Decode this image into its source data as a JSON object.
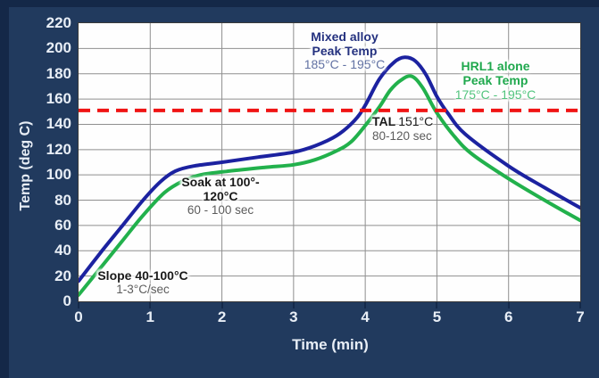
{
  "colors": {
    "background": "#213a5e",
    "edge_strip": "#142848",
    "plot_background": "#fefefe",
    "gridline": "#8f8f8f",
    "axis_text": "#e8eef6",
    "mixed_alloy_line": "#1c22a0",
    "hrl1_line": "#22b14c",
    "tal_line": "#f01414",
    "annotation_navy": "#24317f",
    "annotation_navy_sub": "#6272a3",
    "annotation_black": "#1a1a1a",
    "annotation_gray": "#5c5c5c",
    "annotation_green": "#1fa84d",
    "annotation_green_sub": "#52c47e"
  },
  "annotations": {
    "mixed_alloy": {
      "line1": "Mixed alloy",
      "line2": "Peak Temp",
      "range": "185°C - 195°C"
    },
    "hrl1": {
      "line1": "HRL1 alone",
      "line2": "Peak Temp",
      "range": "175°C - 195°C"
    },
    "tal": {
      "bold": "TAL",
      "value": "151°C",
      "sub": "80-120 sec"
    },
    "soak": {
      "line1": "Soak at 100°-",
      "line2": "120°C",
      "sub": "60 - 100 sec"
    },
    "slope": {
      "line1": "Slope 40-100°C",
      "sub": "1-3°C/sec"
    }
  },
  "chart_data": {
    "type": "line",
    "xlabel": "Time (min)",
    "ylabel": "Temp (deg C)",
    "xlim": [
      0,
      7
    ],
    "ylim": [
      0,
      220
    ],
    "xticks": [
      0,
      1,
      2,
      3,
      4,
      5,
      6,
      7
    ],
    "yticks": [
      0,
      20,
      40,
      60,
      80,
      100,
      120,
      140,
      160,
      180,
      200,
      220
    ],
    "grid": true,
    "legend": "none",
    "series": [
      {
        "name": "Mixed alloy",
        "color": "#1c22a0",
        "peak_temp_range": "185-195 C",
        "points": [
          [
            0,
            16
          ],
          [
            0.3,
            38
          ],
          [
            0.6,
            59
          ],
          [
            0.9,
            80
          ],
          [
            1.15,
            95
          ],
          [
            1.35,
            103
          ],
          [
            1.6,
            107
          ],
          [
            2.0,
            110
          ],
          [
            2.5,
            114
          ],
          [
            3.0,
            118
          ],
          [
            3.3,
            123
          ],
          [
            3.6,
            131
          ],
          [
            3.85,
            143
          ],
          [
            4.0,
            155
          ],
          [
            4.2,
            176
          ],
          [
            4.4,
            189
          ],
          [
            4.55,
            193
          ],
          [
            4.7,
            190
          ],
          [
            4.85,
            179
          ],
          [
            5.0,
            162
          ],
          [
            5.15,
            149
          ],
          [
            5.4,
            132
          ],
          [
            6.0,
            107
          ],
          [
            6.5,
            90
          ],
          [
            7.0,
            74
          ]
        ]
      },
      {
        "name": "HRL1 alone",
        "color": "#22b14c",
        "peak_temp_range": "175-195 C",
        "points": [
          [
            0,
            5
          ],
          [
            0.3,
            26
          ],
          [
            0.6,
            47
          ],
          [
            0.9,
            68
          ],
          [
            1.2,
            86
          ],
          [
            1.45,
            95
          ],
          [
            1.7,
            100
          ],
          [
            2.1,
            103
          ],
          [
            2.6,
            106
          ],
          [
            3.0,
            108
          ],
          [
            3.3,
            112
          ],
          [
            3.6,
            119
          ],
          [
            3.8,
            126
          ],
          [
            4.0,
            139
          ],
          [
            4.2,
            154
          ],
          [
            4.35,
            167
          ],
          [
            4.5,
            175
          ],
          [
            4.65,
            178
          ],
          [
            4.8,
            169
          ],
          [
            5.0,
            149
          ],
          [
            5.25,
            130
          ],
          [
            5.5,
            116
          ],
          [
            6.0,
            97
          ],
          [
            6.5,
            80
          ],
          [
            7.0,
            64
          ]
        ]
      }
    ],
    "reference_line": {
      "label": "TAL",
      "value": 151,
      "color": "#f01414",
      "style": "dashed"
    }
  }
}
